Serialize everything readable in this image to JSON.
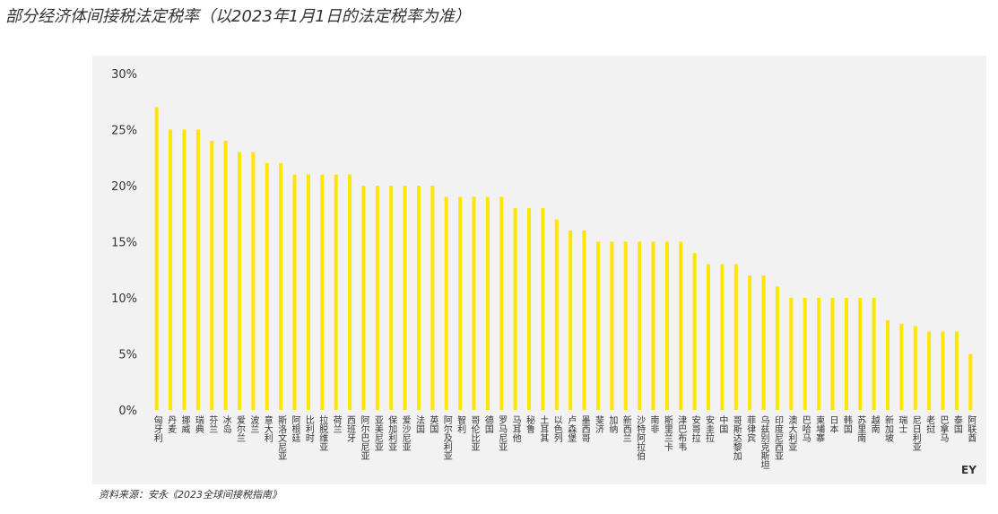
{
  "chart_data": {
    "type": "bar",
    "title": "部分经济体间接税法定税率（以2023年1月1日的法定税率为准）",
    "source": "资料来源：安永《2023全球间接税指南》",
    "logo": "EY",
    "categories": [
      "匈牙利",
      "丹麦",
      "挪威",
      "瑞典",
      "芬兰",
      "冰岛",
      "爱尔兰",
      "波兰",
      "意大利",
      "斯洛文尼亚",
      "阿根廷",
      "比利时",
      "拉脱维亚",
      "荷兰",
      "西班牙",
      "阿尔巴尼亚",
      "亚美尼亚",
      "保加利亚",
      "爱沙尼亚",
      "法国",
      "英国",
      "阿尔及利亚",
      "智利",
      "哥伦比亚",
      "德国",
      "罗马尼亚",
      "马耳他",
      "秘鲁",
      "土耳其",
      "以色列",
      "卢森堡",
      "墨西哥",
      "斐济",
      "加纳",
      "新西兰",
      "沙特阿拉伯",
      "南非",
      "斯里兰卡",
      "津巴布韦",
      "安哥拉",
      "安圭拉",
      "中国",
      "哥斯达黎加",
      "菲律宾",
      "乌兹别克斯坦",
      "印度尼西亚",
      "澳大利亚",
      "巴哈马",
      "柬埔寨",
      "日本",
      "韩国",
      "苏里南",
      "越南",
      "新加坡",
      "瑞士",
      "尼日利亚",
      "老挝",
      "巴拿马",
      "泰国",
      "阿联酋"
    ],
    "values": [
      27,
      25,
      25,
      25,
      24,
      24,
      23,
      23,
      22,
      22,
      21,
      21,
      21,
      21,
      21,
      20,
      20,
      20,
      20,
      20,
      20,
      19,
      19,
      19,
      19,
      19,
      18,
      18,
      18,
      17,
      16,
      16,
      15,
      15,
      15,
      15,
      15,
      15,
      15,
      14,
      13,
      13,
      13,
      12,
      12,
      11,
      10,
      10,
      10,
      10,
      10,
      10,
      10,
      8,
      7.7,
      7.5,
      7,
      7,
      7,
      5
    ],
    "color": "#ffe600",
    "ylim": [
      0,
      30
    ],
    "yticks": [
      {
        "value": 0,
        "label": "0%"
      },
      {
        "value": 5,
        "label": "5%"
      },
      {
        "value": 10,
        "label": "10%"
      },
      {
        "value": 15,
        "label": "15%"
      },
      {
        "value": 20,
        "label": "20%"
      },
      {
        "value": 25,
        "label": "25%"
      },
      {
        "value": 30,
        "label": "30%"
      }
    ],
    "grid": false
  }
}
